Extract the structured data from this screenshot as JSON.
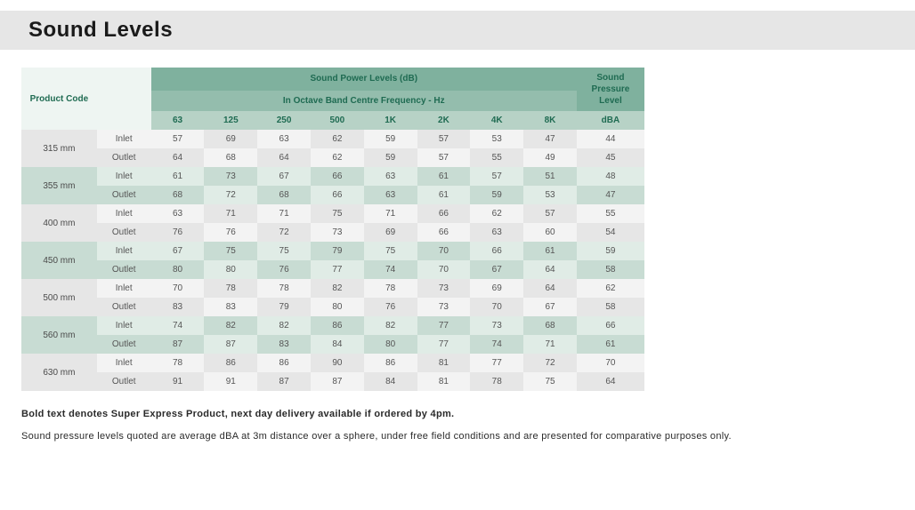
{
  "title": "Sound Levels",
  "table": {
    "header": {
      "product_code": "Product Code",
      "spl_group": "Sound Power Levels (dB)",
      "octave": "In Octave Band Centre Frequency - Hz",
      "pressure_top": "Sound Pressure Level",
      "pressure_unit": "dBA",
      "freqs": [
        "63",
        "125",
        "250",
        "500",
        "1K",
        "2K",
        "4K",
        "8K"
      ]
    },
    "rows": [
      {
        "code": "315 mm",
        "alt": false,
        "inlet": [
          57,
          69,
          63,
          62,
          59,
          57,
          53,
          47,
          44
        ],
        "outlet": [
          64,
          68,
          64,
          62,
          59,
          57,
          55,
          49,
          45
        ]
      },
      {
        "code": "355 mm",
        "alt": true,
        "inlet": [
          61,
          73,
          67,
          66,
          63,
          61,
          57,
          51,
          48
        ],
        "outlet": [
          68,
          72,
          68,
          66,
          63,
          61,
          59,
          53,
          47
        ]
      },
      {
        "code": "400 mm",
        "alt": false,
        "inlet": [
          63,
          71,
          71,
          75,
          71,
          66,
          62,
          57,
          55
        ],
        "outlet": [
          76,
          76,
          72,
          73,
          69,
          66,
          63,
          60,
          54
        ]
      },
      {
        "code": "450 mm",
        "alt": true,
        "inlet": [
          67,
          75,
          75,
          79,
          75,
          70,
          66,
          61,
          59
        ],
        "outlet": [
          80,
          80,
          76,
          77,
          74,
          70,
          67,
          64,
          58
        ]
      },
      {
        "code": "500 mm",
        "alt": false,
        "inlet": [
          70,
          78,
          78,
          82,
          78,
          73,
          69,
          64,
          62
        ],
        "outlet": [
          83,
          83,
          79,
          80,
          76,
          73,
          70,
          67,
          58
        ]
      },
      {
        "code": "560 mm",
        "alt": true,
        "inlet": [
          74,
          82,
          82,
          86,
          82,
          77,
          73,
          68,
          66
        ],
        "outlet": [
          87,
          87,
          83,
          84,
          80,
          77,
          74,
          71,
          61
        ]
      },
      {
        "code": "630 mm",
        "alt": false,
        "inlet": [
          78,
          86,
          86,
          90,
          86,
          81,
          77,
          72,
          70
        ],
        "outlet": [
          91,
          91,
          87,
          87,
          84,
          81,
          78,
          75,
          64
        ]
      }
    ],
    "io_labels": {
      "inlet": "Inlet",
      "outlet": "Outlet"
    }
  },
  "footnote_bold": "Bold text denotes Super Express Product, next day delivery available if ordered by 4pm.",
  "footnote_plain": "Sound pressure levels quoted are average dBA at 3m distance over a sphere, under free field conditions and are presented for comparative purposes only.",
  "colors": {
    "title_bar": "#e6e6e6",
    "header_dark": "#7fb19e",
    "header_mid": "#94bdad",
    "header_light": "#b7d2c6",
    "header_pale": "#eef5f2",
    "row_grey_light": "#f3f3f3",
    "row_grey_dark": "#e6e6e6",
    "row_green_light": "#e0ece6",
    "row_green_dark": "#c8dcd3",
    "header_text": "#1f6b52"
  }
}
